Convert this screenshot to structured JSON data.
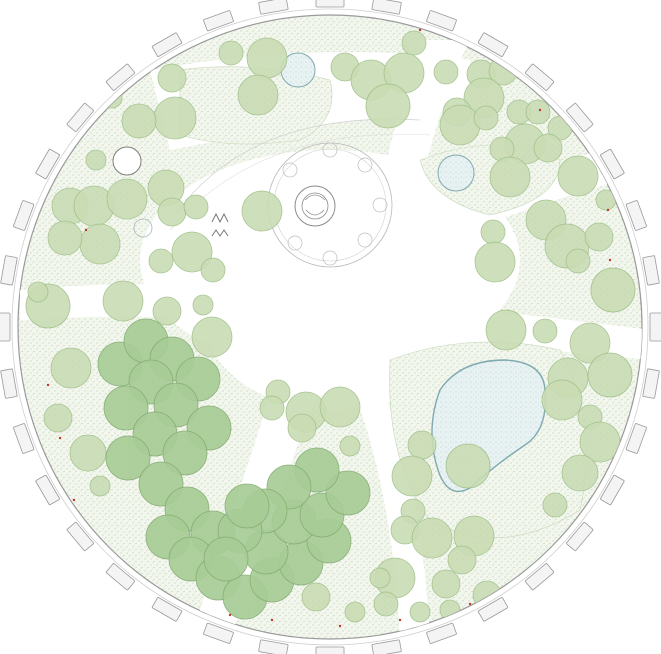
{
  "plan": {
    "kind": "circular garden site plan",
    "palette": {
      "background": "#ffffff",
      "ground": "#f2f6ee",
      "meadow_stipple": "#b9d3a6",
      "tree_light": "#c9dcb4",
      "tree_dark": "#a8cc96",
      "pond_fill": "#e9f2f2",
      "pond_edge": "#7fa9b0",
      "path": "#ffffff",
      "outline": "#9a9a9a",
      "flower_accent": "#c0392b"
    },
    "labels": []
  }
}
